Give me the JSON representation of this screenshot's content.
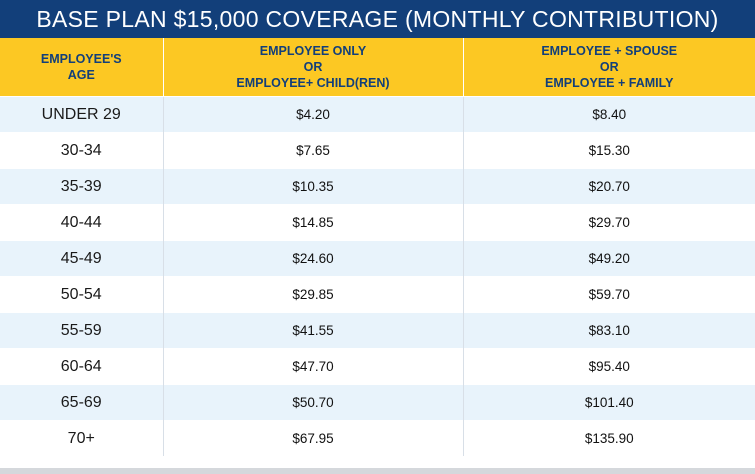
{
  "title": "BASE PLAN $15,000 COVERAGE (MONTHLY CONTRIBUTION)",
  "colors": {
    "title_bg": "#123f7a",
    "header_bg": "#fcc823",
    "header_text": "#123f7a",
    "row_alt_bg": "#e8f3fb"
  },
  "headers": {
    "age": [
      "EMPLOYEE'S",
      "AGE"
    ],
    "employee_only": [
      "EMPLOYEE ONLY",
      "OR",
      "EMPLOYEE+ CHILD(REN)"
    ],
    "employee_family": [
      "EMPLOYEE + SPOUSE",
      "OR",
      "EMPLOYEE + FAMILY"
    ]
  },
  "rows": [
    {
      "age": "UNDER 29",
      "employee_only": "$4.20",
      "employee_family": "$8.40"
    },
    {
      "age": "30-34",
      "employee_only": "$7.65",
      "employee_family": "$15.30"
    },
    {
      "age": "35-39",
      "employee_only": "$10.35",
      "employee_family": "$20.70"
    },
    {
      "age": "40-44",
      "employee_only": "$14.85",
      "employee_family": "$29.70"
    },
    {
      "age": "45-49",
      "employee_only": "$24.60",
      "employee_family": "$49.20"
    },
    {
      "age": "50-54",
      "employee_only": "$29.85",
      "employee_family": "$59.70"
    },
    {
      "age": "55-59",
      "employee_only": "$41.55",
      "employee_family": "$83.10"
    },
    {
      "age": "60-64",
      "employee_only": "$47.70",
      "employee_family": "$95.40"
    },
    {
      "age": "65-69",
      "employee_only": "$50.70",
      "employee_family": "$101.40"
    },
    {
      "age": "70+",
      "employee_only": "$67.95",
      "employee_family": "$135.90"
    }
  ]
}
